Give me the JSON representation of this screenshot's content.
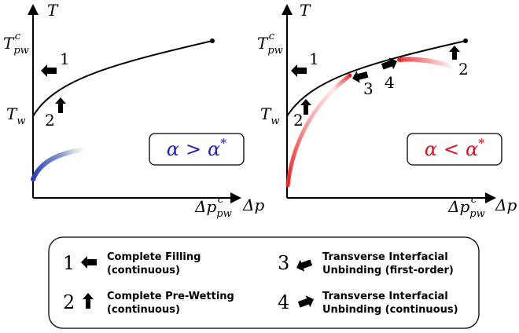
{
  "left_panel": {
    "y_axis_label": "T",
    "x_axis_label": "Δp",
    "y_tick_top": {
      "main": "T",
      "sub": "pw",
      "sup": "c"
    },
    "y_tick_bottom": {
      "main": "T",
      "sub": "w"
    },
    "x_tick": {
      "main": "Δp",
      "sub": "pw",
      "sup": "c"
    },
    "arrow_labels": [
      "1",
      "2"
    ],
    "condition": {
      "lhs": "α",
      "op": ">",
      "rhs": "α",
      "star": "*"
    },
    "condition_color": "#1f1fbf"
  },
  "right_panel": {
    "y_axis_label": "T",
    "x_axis_label": "Δp",
    "y_tick_top": {
      "main": "T",
      "sub": "pw",
      "sup": "c"
    },
    "y_tick_bottom": {
      "main": "T",
      "sub": "w"
    },
    "x_tick": {
      "main": "Δp",
      "sub": "pw",
      "sup": "c"
    },
    "arrow_labels": [
      "1",
      "2",
      "3",
      "4",
      "2"
    ],
    "condition": {
      "lhs": "α",
      "op": "<",
      "rhs": "α",
      "star": "*"
    },
    "condition_color": "#e0101a"
  },
  "legend": {
    "items": [
      {
        "num": "1",
        "line1": "Complete Filling",
        "line2": "(continuous)"
      },
      {
        "num": "2",
        "line1": "Complete Pre-Wetting",
        "line2": "(continuous)"
      },
      {
        "num": "3",
        "line1": "Transverse Interfacial",
        "line2": "Unbinding (first-order)"
      },
      {
        "num": "4",
        "line1": "Transverse Interfacial",
        "line2": "Unbinding (continuous)"
      }
    ]
  },
  "colors": {
    "blue_line": "#2a3fb5",
    "green_fade": "#7fb58f",
    "red_line": "#ee2020"
  }
}
